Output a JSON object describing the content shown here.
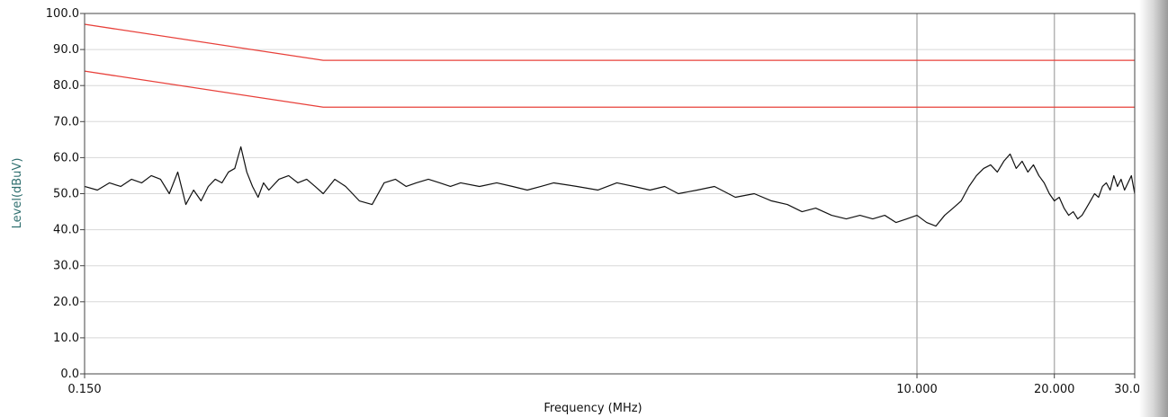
{
  "chart_data": {
    "type": "line",
    "title": "",
    "xlabel": "Frequency (MHz)",
    "ylabel": "Level(dBuV)",
    "x_scale": "log",
    "xlim": [
      0.15,
      30
    ],
    "ylim": [
      0,
      100
    ],
    "x_ticks": [
      {
        "value": 0.15,
        "label": "0.150"
      },
      {
        "value": 10,
        "label": "10.000"
      },
      {
        "value": 20,
        "label": "20.000"
      },
      {
        "value": 30,
        "label": "30.000"
      }
    ],
    "x_gridlines": [
      10,
      20
    ],
    "y_ticks": [
      {
        "value": 0,
        "label": "0.0"
      },
      {
        "value": 10,
        "label": "10.0"
      },
      {
        "value": 20,
        "label": "20.0"
      },
      {
        "value": 30,
        "label": "30.0"
      },
      {
        "value": 40,
        "label": "40.0"
      },
      {
        "value": 50,
        "label": "50.0"
      },
      {
        "value": 60,
        "label": "60.0"
      },
      {
        "value": 70,
        "label": "70.0"
      },
      {
        "value": 80,
        "label": "80.0"
      },
      {
        "value": 90,
        "label": "90.0"
      },
      {
        "value": 100,
        "label": "100.0"
      }
    ],
    "grid": true,
    "legend": "none",
    "colors": {
      "limit": "#e8403a",
      "trace": "#111111",
      "grid": "#d8d8d8",
      "major_grid": "#b4b4b4",
      "axis": "#444444",
      "ylabel": "#2f6f6f",
      "xlabel": "#111111"
    },
    "series": [
      {
        "kind": "limit",
        "x": [
          0.15,
          0.5,
          30
        ],
        "y": [
          97,
          87,
          87
        ]
      },
      {
        "kind": "limit",
        "x": [
          0.15,
          0.5,
          30
        ],
        "y": [
          84,
          74,
          74
        ]
      },
      {
        "kind": "measurement",
        "x": [
          0.15,
          0.16,
          0.17,
          0.18,
          0.19,
          0.2,
          0.21,
          0.22,
          0.23,
          0.24,
          0.25,
          0.26,
          0.27,
          0.28,
          0.29,
          0.3,
          0.31,
          0.32,
          0.33,
          0.34,
          0.35,
          0.36,
          0.37,
          0.38,
          0.4,
          0.42,
          0.44,
          0.46,
          0.48,
          0.5,
          0.53,
          0.56,
          0.6,
          0.64,
          0.68,
          0.72,
          0.76,
          0.8,
          0.85,
          0.9,
          0.95,
          1.0,
          1.1,
          1.2,
          1.3,
          1.4,
          1.5,
          1.6,
          1.8,
          2.0,
          2.2,
          2.4,
          2.6,
          2.8,
          3.0,
          3.3,
          3.6,
          4.0,
          4.4,
          4.8,
          5.2,
          5.6,
          6.0,
          6.5,
          7.0,
          7.5,
          8.0,
          8.5,
          9.0,
          9.5,
          10.0,
          10.5,
          11.0,
          11.5,
          12.0,
          12.5,
          13.0,
          13.5,
          14.0,
          14.5,
          15.0,
          15.5,
          16.0,
          16.5,
          17.0,
          17.5,
          18.0,
          18.5,
          19.0,
          19.5,
          20.0,
          20.5,
          21.0,
          21.5,
          22.0,
          22.5,
          23.0,
          23.5,
          24.0,
          24.5,
          25.0,
          25.5,
          26.0,
          26.5,
          27.0,
          27.5,
          28.0,
          28.5,
          29.0,
          29.5,
          30.0
        ],
        "y": [
          52,
          51,
          53,
          52,
          54,
          53,
          55,
          54,
          50,
          56,
          47,
          51,
          48,
          52,
          54,
          53,
          56,
          57,
          63,
          56,
          52,
          49,
          53,
          51,
          54,
          55,
          53,
          54,
          52,
          50,
          54,
          52,
          48,
          47,
          53,
          54,
          52,
          53,
          54,
          53,
          52,
          53,
          52,
          53,
          52,
          51,
          52,
          53,
          52,
          51,
          53,
          52,
          51,
          52,
          50,
          51,
          52,
          49,
          50,
          48,
          47,
          45,
          46,
          44,
          43,
          44,
          43,
          44,
          42,
          43,
          44,
          42,
          41,
          44,
          46,
          48,
          52,
          55,
          57,
          58,
          56,
          59,
          61,
          57,
          59,
          56,
          58,
          55,
          53,
          50,
          48,
          49,
          46,
          44,
          45,
          43,
          44,
          46,
          48,
          50,
          49,
          52,
          53,
          51,
          55,
          52,
          54,
          51,
          53,
          55,
          50
        ]
      }
    ]
  }
}
